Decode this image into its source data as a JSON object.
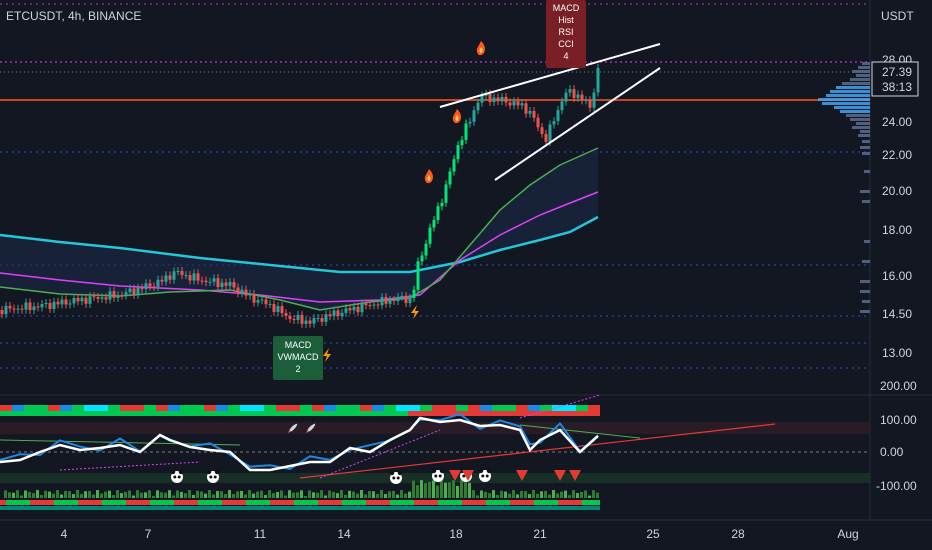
{
  "header": {
    "symbol_title": "ETCUSDT, 4h, BINANCE"
  },
  "price_axis": {
    "currency": "USDT",
    "ticks": [
      "28.00",
      "24.00",
      "22.00",
      "20.00",
      "18.00",
      "16.00",
      "14.50",
      "13.00"
    ],
    "current_price": "27.39",
    "countdown": "38:13"
  },
  "oscillator_axis": {
    "ticks": [
      "200.00",
      "100.00",
      "0.00",
      "-100.00"
    ]
  },
  "time_axis": {
    "ticks": [
      "4",
      "7",
      "11",
      "14",
      "18",
      "21",
      "25",
      "28",
      "Aug"
    ]
  },
  "signal_boxes": {
    "bear": {
      "lines": [
        "MACD",
        "Hist",
        "RSI",
        "CCI",
        "4"
      ]
    },
    "bull": {
      "lines": [
        "MACD",
        "VWMACD",
        "2"
      ]
    }
  },
  "colors": {
    "background": "#131722",
    "up_candle": "#26a69a",
    "down_candle": "#ef5350",
    "ema_fast": "#4caf50",
    "ema_mid": "#e040fb",
    "ema_slow": "#26c6da",
    "resistance_line": "#ff5722",
    "bear_box": "#7a1f26",
    "bull_box": "#1b5e3a"
  },
  "icons": [
    "flame-icon",
    "lightning-icon",
    "rocket-icon",
    "panda-icon",
    "down-triangle-icon"
  ]
}
